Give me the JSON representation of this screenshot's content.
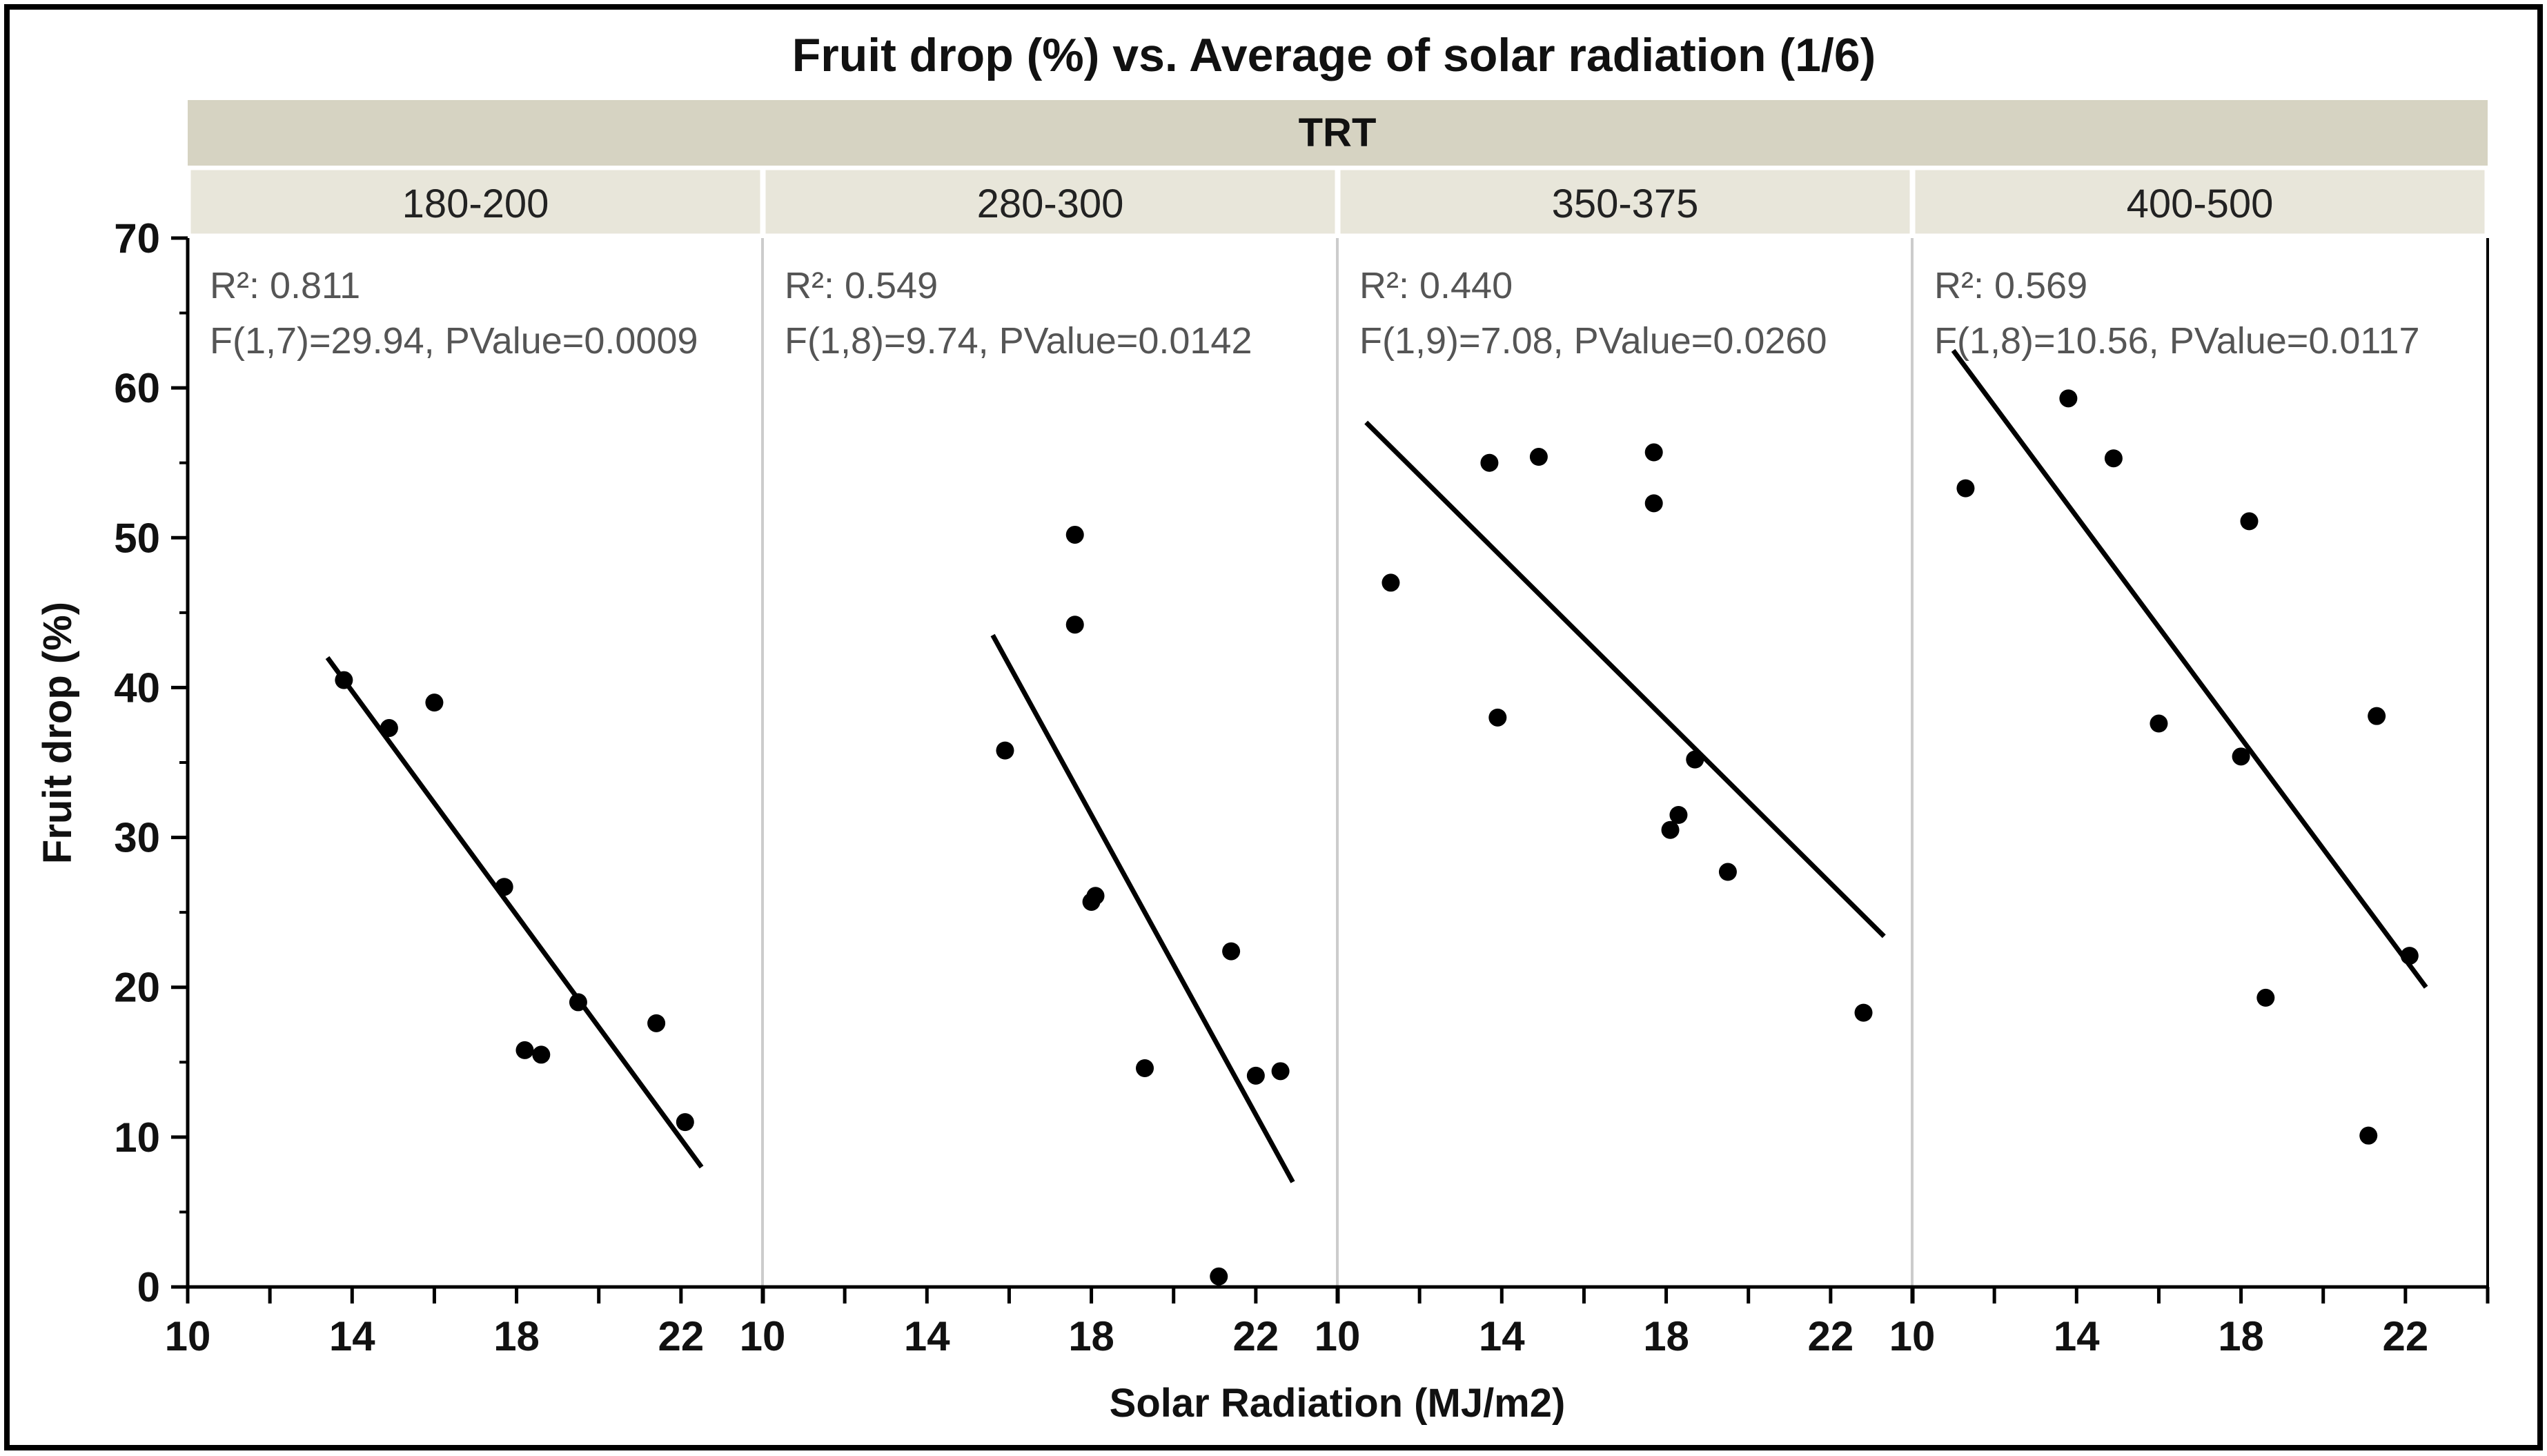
{
  "chart_data": {
    "type": "scatter",
    "title": "Fruit drop (%) vs. Average of solar radiation (1/6)",
    "group_title": "TRT",
    "xlabel": "Solar Radiation (MJ/m2)",
    "ylabel": "Fruit drop (%)",
    "xlim": [
      10,
      24
    ],
    "ylim": [
      0,
      70
    ],
    "x_ticks": [
      "10",
      "14",
      "18",
      "22"
    ],
    "y_ticks": [
      "0",
      "10",
      "20",
      "30",
      "40",
      "50",
      "60",
      "70"
    ],
    "colors": {
      "marker": "#000000",
      "line": "#000000",
      "header": "#d6d3c2",
      "panel_header": "#e8e6da",
      "divider": "#cccccc"
    },
    "panels": [
      {
        "label": "180-200",
        "r2_label": "R²: 0.811",
        "stat_label": "F(1,7)=29.94, PValue=0.0009",
        "fit": {
          "x": [
            13.4,
            22.5
          ],
          "y": [
            42.0,
            8.0
          ]
        },
        "points": [
          {
            "x": 13.8,
            "y": 40.5
          },
          {
            "x": 14.9,
            "y": 37.3
          },
          {
            "x": 16.0,
            "y": 39.0
          },
          {
            "x": 17.7,
            "y": 26.7
          },
          {
            "x": 18.2,
            "y": 15.8
          },
          {
            "x": 18.6,
            "y": 15.5
          },
          {
            "x": 19.5,
            "y": 19.0
          },
          {
            "x": 21.4,
            "y": 17.6
          },
          {
            "x": 22.1,
            "y": 11.0
          }
        ]
      },
      {
        "label": "280-300",
        "r2_label": "R²: 0.549",
        "stat_label": "F(1,8)=9.74, PValue=0.0142",
        "fit": {
          "x": [
            15.6,
            22.9
          ],
          "y": [
            43.5,
            7.0
          ]
        },
        "points": [
          {
            "x": 15.9,
            "y": 35.8
          },
          {
            "x": 17.6,
            "y": 50.2
          },
          {
            "x": 17.6,
            "y": 44.2
          },
          {
            "x": 18.0,
            "y": 25.7
          },
          {
            "x": 18.1,
            "y": 26.1
          },
          {
            "x": 19.3,
            "y": 14.6
          },
          {
            "x": 21.1,
            "y": 0.7
          },
          {
            "x": 21.4,
            "y": 22.4
          },
          {
            "x": 22.0,
            "y": 14.1
          },
          {
            "x": 22.6,
            "y": 14.4
          }
        ]
      },
      {
        "label": "350-375",
        "r2_label": "R²: 0.440",
        "stat_label": "F(1,9)=7.08, PValue=0.0260",
        "fit": {
          "x": [
            10.7,
            23.3
          ],
          "y": [
            57.7,
            23.4
          ]
        },
        "points": [
          {
            "x": 11.3,
            "y": 47.0
          },
          {
            "x": 13.7,
            "y": 55.0
          },
          {
            "x": 13.9,
            "y": 38.0
          },
          {
            "x": 14.9,
            "y": 55.4
          },
          {
            "x": 17.7,
            "y": 55.7
          },
          {
            "x": 17.7,
            "y": 52.3
          },
          {
            "x": 18.1,
            "y": 30.5
          },
          {
            "x": 18.3,
            "y": 31.5
          },
          {
            "x": 18.7,
            "y": 35.2
          },
          {
            "x": 19.5,
            "y": 27.7
          },
          {
            "x": 22.8,
            "y": 18.3
          }
        ]
      },
      {
        "label": "400-500",
        "r2_label": "R²: 0.569",
        "stat_label": "F(1,8)=10.56, PValue=0.0117",
        "fit": {
          "x": [
            11.0,
            22.5
          ],
          "y": [
            62.5,
            20.0
          ]
        },
        "points": [
          {
            "x": 11.3,
            "y": 53.3
          },
          {
            "x": 13.8,
            "y": 59.3
          },
          {
            "x": 14.9,
            "y": 55.3
          },
          {
            "x": 16.0,
            "y": 37.6
          },
          {
            "x": 18.0,
            "y": 35.4
          },
          {
            "x": 18.2,
            "y": 51.1
          },
          {
            "x": 18.6,
            "y": 19.3
          },
          {
            "x": 21.1,
            "y": 10.1
          },
          {
            "x": 21.3,
            "y": 38.1
          },
          {
            "x": 22.1,
            "y": 22.1
          }
        ]
      }
    ]
  }
}
